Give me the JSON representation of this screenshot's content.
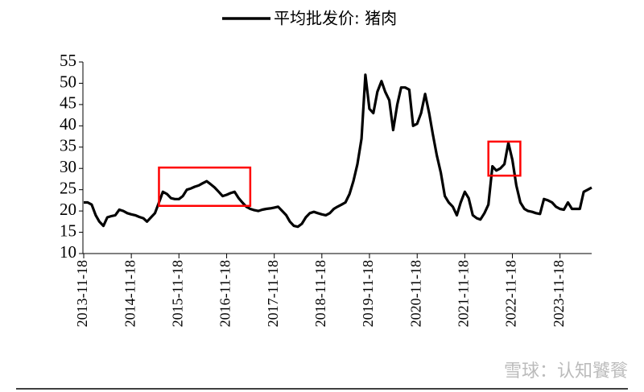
{
  "chart_data": {
    "type": "line",
    "legend_position": "top",
    "series": [
      {
        "name": "平均批发价: 猪肉",
        "color": "#000000",
        "x": [
          "2013-11-18",
          "2013-12-18",
          "2014-01-18",
          "2014-02-18",
          "2014-03-18",
          "2014-04-18",
          "2014-05-18",
          "2014-06-18",
          "2014-07-18",
          "2014-08-18",
          "2014-09-18",
          "2014-10-18",
          "2014-11-18",
          "2014-12-18",
          "2015-01-18",
          "2015-02-18",
          "2015-03-18",
          "2015-04-18",
          "2015-05-18",
          "2015-06-18",
          "2015-07-18",
          "2015-08-18",
          "2015-09-18",
          "2015-10-18",
          "2015-11-18",
          "2015-12-18",
          "2016-01-18",
          "2016-02-18",
          "2016-03-18",
          "2016-04-18",
          "2016-05-18",
          "2016-06-18",
          "2016-07-18",
          "2016-08-18",
          "2016-09-18",
          "2016-10-18",
          "2016-11-18",
          "2016-12-18",
          "2017-01-18",
          "2017-02-18",
          "2017-03-18",
          "2017-04-18",
          "2017-05-18",
          "2017-06-18",
          "2017-07-18",
          "2017-08-18",
          "2017-09-18",
          "2017-10-18",
          "2017-11-18",
          "2017-12-18",
          "2018-01-18",
          "2018-02-18",
          "2018-03-18",
          "2018-04-18",
          "2018-05-18",
          "2018-06-18",
          "2018-07-18",
          "2018-08-18",
          "2018-09-18",
          "2018-10-18",
          "2018-11-18",
          "2018-12-18",
          "2019-01-18",
          "2019-02-18",
          "2019-03-18",
          "2019-04-18",
          "2019-05-18",
          "2019-06-18",
          "2019-07-18",
          "2019-08-18",
          "2019-09-18",
          "2019-10-18",
          "2019-11-18",
          "2019-12-18",
          "2020-01-18",
          "2020-02-18",
          "2020-03-18",
          "2020-04-18",
          "2020-05-18",
          "2020-06-18",
          "2020-07-18",
          "2020-08-18",
          "2020-09-18",
          "2020-10-18",
          "2020-11-18",
          "2020-12-18",
          "2021-01-18",
          "2021-02-18",
          "2021-03-18",
          "2021-04-18",
          "2021-05-18",
          "2021-06-18",
          "2021-07-18",
          "2021-08-18",
          "2021-09-18",
          "2021-10-18",
          "2021-11-18",
          "2021-12-18",
          "2022-01-18",
          "2022-02-18",
          "2022-03-18",
          "2022-04-18",
          "2022-05-18",
          "2022-06-18",
          "2022-07-18",
          "2022-08-18",
          "2022-09-18",
          "2022-10-18",
          "2022-11-18",
          "2022-12-18",
          "2023-01-18",
          "2023-02-18",
          "2023-03-18",
          "2023-04-18",
          "2023-05-18",
          "2023-06-18",
          "2023-07-18",
          "2023-08-18",
          "2023-09-18",
          "2023-10-18",
          "2023-11-18",
          "2023-12-18",
          "2024-01-18",
          "2024-02-18",
          "2024-03-18",
          "2024-04-18",
          "2024-05-18",
          "2024-06-18",
          "2024-07-18"
        ],
        "values": [
          22,
          22,
          21.5,
          19,
          17.5,
          16.5,
          18.5,
          18.8,
          19,
          20.3,
          20,
          19.5,
          19.2,
          19,
          18.6,
          18.3,
          17.5,
          18.5,
          19.5,
          22,
          24.5,
          24,
          23,
          22.8,
          22.8,
          23.5,
          25,
          25.3,
          25.7,
          26,
          26.5,
          27,
          26.3,
          25.5,
          24.5,
          23.5,
          23.8,
          24.2,
          24.5,
          23,
          22,
          21,
          20.5,
          20.2,
          20,
          20.3,
          20.5,
          20.6,
          20.8,
          21,
          20,
          19,
          17.5,
          16.5,
          16.3,
          17,
          18.5,
          19.5,
          19.8,
          19.5,
          19.2,
          19,
          19.5,
          20.5,
          21,
          21.5,
          22,
          24,
          27,
          31,
          37,
          52,
          44,
          43,
          48,
          50.5,
          48,
          46,
          39,
          45,
          49,
          49,
          48.5,
          40,
          40.5,
          43,
          47.5,
          43,
          38,
          33,
          29,
          23.5,
          22,
          21,
          19,
          22,
          24.5,
          23,
          19,
          18.3,
          18,
          19.5,
          21.5,
          30.5,
          29.5,
          30,
          31,
          36,
          32,
          26,
          22,
          20.5,
          20,
          19.8,
          19.5,
          19.3,
          22.8,
          22.5,
          22,
          21,
          20.5,
          20.3,
          22,
          20.5,
          20.5,
          20.5,
          24.5,
          25,
          25.5
        ]
      }
    ],
    "xlim": [
      "2013-11-18",
      "2024-07-18"
    ],
    "xticks": [
      "2013-11-18",
      "2014-11-18",
      "2015-11-18",
      "2016-11-18",
      "2017-11-18",
      "2018-11-18",
      "2019-11-18",
      "2020-11-18",
      "2021-11-18",
      "2022-11-18",
      "2023-11-18"
    ],
    "ylim": [
      10,
      55
    ],
    "yticks": [
      10,
      15,
      20,
      25,
      30,
      35,
      40,
      45,
      50,
      55
    ],
    "highlights": [
      {
        "x": [
          "2015-06-18",
          "2017-05-18"
        ],
        "y": [
          21.2,
          30.2
        ],
        "color": "#ff0000"
      },
      {
        "x": [
          "2022-05-18",
          "2023-01-18"
        ],
        "y": [
          28.3,
          36.3
        ],
        "color": "#ff0000"
      }
    ],
    "watermark": "雪球：认知饕餮"
  }
}
